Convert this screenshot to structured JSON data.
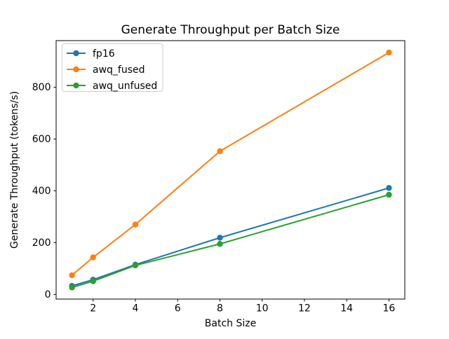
{
  "figure": {
    "background": "#ffffff"
  },
  "chart_data": {
    "type": "line",
    "title": "Generate Throughput per Batch Size",
    "xlabel": "Batch Size",
    "ylabel": "Generate Throughput (tokens/s)",
    "x": [
      1,
      2,
      4,
      8,
      16
    ],
    "series": [
      {
        "name": "fp16",
        "color": "#1f77b4",
        "values": [
          33,
          57,
          115,
          219,
          411
        ]
      },
      {
        "name": "awq_fused",
        "color": "#ff7f0e",
        "values": [
          74,
          143,
          270,
          553,
          934
        ]
      },
      {
        "name": "awq_unfused",
        "color": "#2ca02c",
        "values": [
          27,
          51,
          112,
          195,
          385
        ]
      }
    ],
    "xticks": [
      2,
      4,
      6,
      8,
      10,
      12,
      14,
      16
    ],
    "yticks": [
      0,
      200,
      400,
      600,
      800
    ],
    "xlim": [
      0.25,
      16.75
    ],
    "ylim": [
      -18,
      980
    ],
    "grid": false,
    "marker": "circle",
    "legend_position": "upper left",
    "axis_color": "#000000",
    "legend_border_color": "#cccccc",
    "legend_background": "#ffffff"
  }
}
